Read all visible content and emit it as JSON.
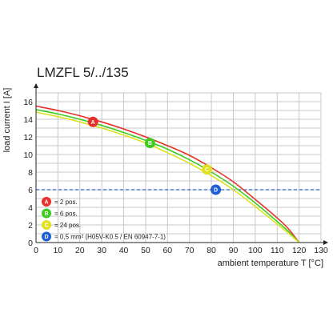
{
  "chart_data": {
    "type": "line",
    "title": "LMZFL 5/../135",
    "xlabel": "ambient temperature T [°C]",
    "ylabel": "load current I [A]",
    "xlim": [
      0,
      130
    ],
    "ylim": [
      0,
      17
    ],
    "xticks": [
      "0",
      "10",
      "20",
      "30",
      "40",
      "50",
      "60",
      "70",
      "80",
      "90",
      "100",
      "110",
      "120",
      "130"
    ],
    "yticks": [
      "0",
      "2",
      "4",
      "6",
      "8",
      "10",
      "12",
      "14",
      "16"
    ],
    "grid": true,
    "series": [
      {
        "name": "= 2 pos.",
        "marker": "A",
        "color": "#e8302a",
        "x": [
          0,
          10,
          20,
          30,
          40,
          50,
          60,
          70,
          80,
          90,
          100,
          110,
          115,
          120
        ],
        "y": [
          15.5,
          15.0,
          14.4,
          13.7,
          12.9,
          12.0,
          11.0,
          9.9,
          8.5,
          6.9,
          4.9,
          2.8,
          1.6,
          0.0
        ]
      },
      {
        "name": "= 6 pos.",
        "marker": "B",
        "color": "#3ecb1f",
        "x": [
          0,
          10,
          20,
          30,
          40,
          50,
          60,
          70,
          80,
          90,
          100,
          110,
          115,
          120
        ],
        "y": [
          15.1,
          14.6,
          14.0,
          13.3,
          12.5,
          11.6,
          10.6,
          9.4,
          8.0,
          6.4,
          4.5,
          2.4,
          1.3,
          0.0
        ]
      },
      {
        "name": "= 24 pos.",
        "marker": "C",
        "color": "#e0e020",
        "x": [
          0,
          10,
          20,
          30,
          40,
          50,
          60,
          70,
          80,
          90,
          100,
          110,
          115,
          120
        ],
        "y": [
          14.8,
          14.3,
          13.7,
          13.0,
          12.2,
          11.3,
          10.2,
          9.0,
          7.6,
          6.0,
          4.1,
          2.1,
          1.1,
          0.0
        ]
      }
    ],
    "markers": [
      {
        "label": "A",
        "x": 26,
        "y": 13.7,
        "color": "#e8302a"
      },
      {
        "label": "B",
        "x": 52,
        "y": 11.3,
        "color": "#3ecb1f"
      },
      {
        "label": "C",
        "x": 78,
        "y": 8.3,
        "color": "#e0e020"
      },
      {
        "label": "D",
        "x": 82,
        "y": 6.0,
        "color": "#1f5fd6"
      }
    ],
    "reference_line": {
      "y": 6,
      "color": "#2b62c8"
    },
    "legend": {
      "placement": "bottom-left",
      "items": [
        {
          "key": "A",
          "text": "= 2 pos.",
          "color": "#e8302a"
        },
        {
          "key": "B",
          "text": "= 6 pos.",
          "color": "#3ecb1f"
        },
        {
          "key": "C",
          "text": "= 24 pos.",
          "color": "#e0e020"
        },
        {
          "key": "D",
          "text": "= 0,5 mm² (H05V-K0.5 / EN 60947-7-1)",
          "color": "#1f5fd6"
        }
      ]
    }
  }
}
